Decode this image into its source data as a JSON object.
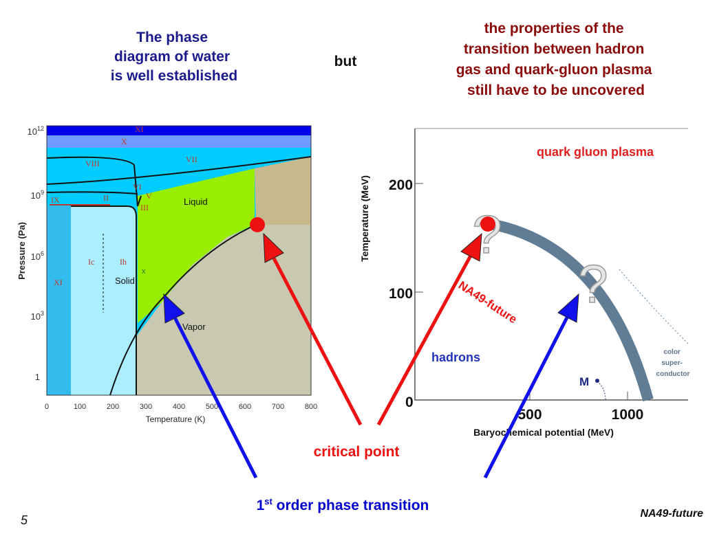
{
  "left_title": {
    "lines": [
      "The phase",
      "diagram of water",
      "is well established"
    ]
  },
  "connector": "but",
  "right_title": {
    "lines": [
      "the properties of the",
      "transition between hadron",
      "gas and quark-gluon plasma",
      "still have to be uncovered"
    ]
  },
  "water_diagram": {
    "y_axis_label": "Pressure (Pa)",
    "x_axis_label": "Temperature (K)",
    "x_ticks": [
      "0",
      "100",
      "200",
      "300",
      "400",
      "500",
      "600",
      "700",
      "800"
    ],
    "y_ticks": [
      {
        "text": "10",
        "sup": "12"
      },
      {
        "text": "10",
        "sup": "9"
      },
      {
        "text": "10",
        "sup": "6"
      },
      {
        "text": "10",
        "sup": "3"
      },
      {
        "text": "1"
      }
    ],
    "phase_labels": [
      "XI",
      "X",
      "VIII",
      "VII",
      "VI",
      "V",
      "III",
      "IX",
      "II",
      "Liquid",
      "Ic",
      "Ih",
      "Solid",
      "x",
      "XI",
      "Vapor"
    ]
  },
  "qcd_diagram": {
    "y_axis_label": "Temperature (MeV)",
    "x_axis_label": "Baryochemical potential (MeV)",
    "y_ticks": [
      "200",
      "100",
      "0"
    ],
    "x_ticks": [
      "500",
      "1000"
    ],
    "qgp_label": "quark gluon plasma",
    "hadrons_label": "hadrons",
    "color_sc_label": [
      "color",
      "super-",
      "conductor"
    ],
    "m_label": "M",
    "question_marks": [
      "?",
      "?"
    ],
    "arrow_label": "NA49-future"
  },
  "critical_point_label": "critical point",
  "transition_label": {
    "text": "1",
    "sup": "st",
    "rest": " order phase transition"
  },
  "footer": {
    "page_number": "5",
    "experiment": "NA49-future"
  }
}
